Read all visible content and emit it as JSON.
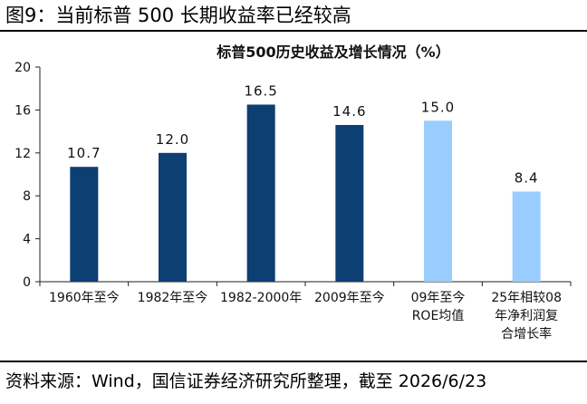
{
  "figure": {
    "title": "图9：当前标普 500 长期收益率已经较高",
    "source": "资料来源：Wind，国信证券经济研究所整理，截至 2026/6/23"
  },
  "chart_data": {
    "type": "bar",
    "title": "标普500历史收益及增长情况（%）",
    "categories": [
      "1960年至今",
      "1982年至今",
      "1982-2000年",
      "2009年至今",
      "09年至今 ROE均值",
      "25年相较08 年净利润复 合增长率"
    ],
    "category_lines": [
      [
        "1960年至今"
      ],
      [
        "1982年至今"
      ],
      [
        "1982-2000年"
      ],
      [
        "2009年至今"
      ],
      [
        "09年至今",
        "ROE均值"
      ],
      [
        "25年相较08",
        "年净利润复",
        "合增长率"
      ]
    ],
    "values": [
      10.7,
      12.0,
      16.5,
      14.6,
      15.0,
      8.4
    ],
    "data_labels": [
      "10.7",
      "12.0",
      "16.5",
      "14.6",
      "15.0",
      "8.4"
    ],
    "bar_colors": [
      "#0d3f73",
      "#0d3f73",
      "#0d3f73",
      "#0d3f73",
      "#99ccff",
      "#99ccff"
    ],
    "ylim": [
      0,
      20
    ],
    "yticks": [
      "0",
      "4",
      "8",
      "12",
      "16",
      "20"
    ],
    "grid": false
  }
}
